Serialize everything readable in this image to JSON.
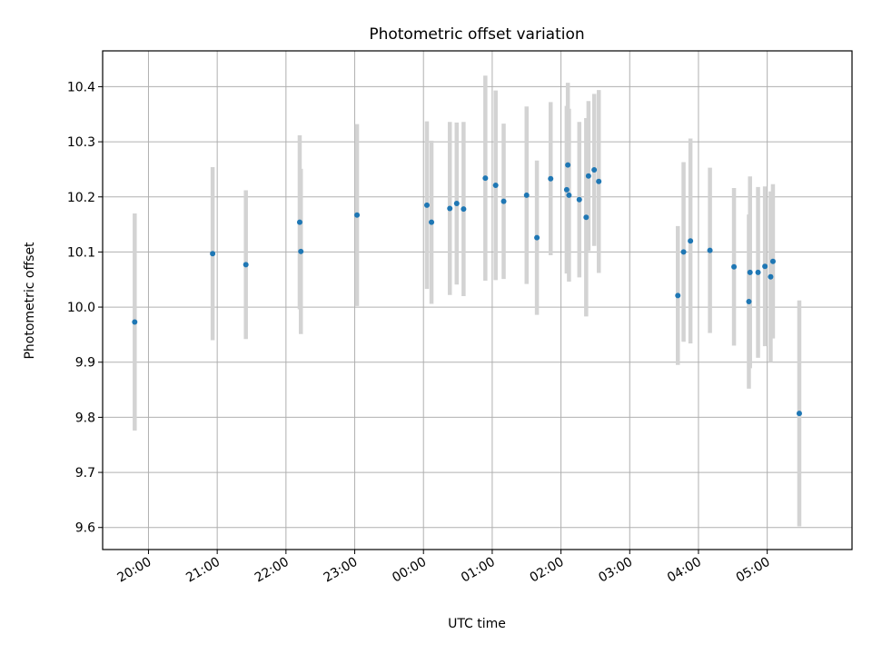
{
  "chart_data": {
    "type": "scatter",
    "title": "Photometric offset variation",
    "xlabel": "UTC time",
    "ylabel": "Photometric offset",
    "x_axis": "time",
    "xlim": [
      "19:20",
      "06:14"
    ],
    "ylim": [
      9.56,
      10.465
    ],
    "y_ticks": [
      "9.6",
      "9.7",
      "9.8",
      "9.9",
      "10.0",
      "10.1",
      "10.2",
      "10.3",
      "10.4"
    ],
    "x_ticks": [
      "20:00",
      "21:00",
      "22:00",
      "23:00",
      "00:00",
      "01:00",
      "02:00",
      "03:00",
      "04:00",
      "05:00"
    ],
    "grid": true,
    "colors": {
      "point": "#1f77b4",
      "errorbar": "#d3d3d3",
      "grid": "#b0b0b0"
    },
    "points": [
      {
        "t": "19:48",
        "y": 9.973,
        "err": 0.197
      },
      {
        "t": "20:56",
        "y": 10.097,
        "err": 0.157
      },
      {
        "t": "21:25",
        "y": 10.077,
        "err": 0.135
      },
      {
        "t": "22:12",
        "y": 10.154,
        "err": 0.158
      },
      {
        "t": "22:13",
        "y": 10.101,
        "err": 0.15
      },
      {
        "t": "23:02",
        "y": 10.167,
        "err": 0.165
      },
      {
        "t": "00:03",
        "y": 10.185,
        "err": 0.152
      },
      {
        "t": "00:07",
        "y": 10.154,
        "err": 0.148
      },
      {
        "t": "00:23",
        "y": 10.179,
        "err": 0.157
      },
      {
        "t": "00:29",
        "y": 10.188,
        "err": 0.147
      },
      {
        "t": "00:35",
        "y": 10.178,
        "err": 0.158
      },
      {
        "t": "00:54",
        "y": 10.234,
        "err": 0.186
      },
      {
        "t": "01:03",
        "y": 10.221,
        "err": 0.172
      },
      {
        "t": "01:10",
        "y": 10.192,
        "err": 0.141
      },
      {
        "t": "01:30",
        "y": 10.203,
        "err": 0.161
      },
      {
        "t": "01:39",
        "y": 10.126,
        "err": 0.14
      },
      {
        "t": "01:51",
        "y": 10.233,
        "err": 0.139
      },
      {
        "t": "02:05",
        "y": 10.213,
        "err": 0.152
      },
      {
        "t": "02:06",
        "y": 10.258,
        "err": 0.149
      },
      {
        "t": "02:07",
        "y": 10.203,
        "err": 0.157
      },
      {
        "t": "02:16",
        "y": 10.195,
        "err": 0.141
      },
      {
        "t": "02:22",
        "y": 10.163,
        "err": 0.18
      },
      {
        "t": "02:24",
        "y": 10.238,
        "err": 0.136
      },
      {
        "t": "02:29",
        "y": 10.249,
        "err": 0.138
      },
      {
        "t": "02:33",
        "y": 10.228,
        "err": 0.166
      },
      {
        "t": "03:42",
        "y": 10.021,
        "err": 0.126
      },
      {
        "t": "03:47",
        "y": 10.1,
        "err": 0.163
      },
      {
        "t": "03:53",
        "y": 10.12,
        "err": 0.186
      },
      {
        "t": "04:10",
        "y": 10.103,
        "err": 0.15
      },
      {
        "t": "04:31",
        "y": 10.073,
        "err": 0.143
      },
      {
        "t": "04:44",
        "y": 10.01,
        "err": 0.158
      },
      {
        "t": "04:45",
        "y": 10.063,
        "err": 0.174
      },
      {
        "t": "04:52",
        "y": 10.063,
        "err": 0.155
      },
      {
        "t": "04:58",
        "y": 10.074,
        "err": 0.145
      },
      {
        "t": "05:03",
        "y": 10.055,
        "err": 0.155
      },
      {
        "t": "05:05",
        "y": 10.083,
        "err": 0.14
      },
      {
        "t": "05:28",
        "y": 9.807,
        "err": 0.205
      }
    ]
  }
}
